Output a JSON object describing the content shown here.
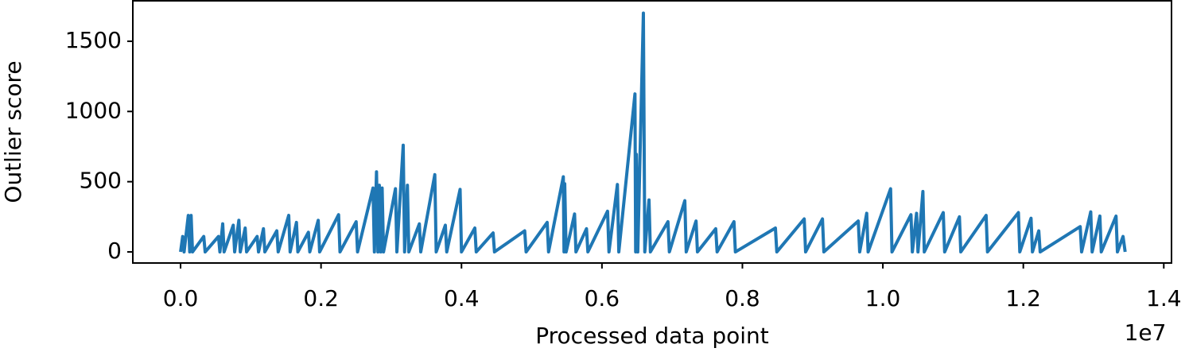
{
  "chart_data": {
    "type": "line",
    "x_label": "Processed data point",
    "y_label": "Outlier score",
    "x_offset_label": "1e7",
    "xlim": [
      -0.068,
      1.411
    ],
    "ylim": [
      -79,
      1788
    ],
    "xticks": [
      {
        "value": 0,
        "label": "0.0"
      },
      0.2,
      0.4,
      0.6,
      0.8,
      {
        "value": 1,
        "label": "1.0"
      },
      1.2,
      1.4
    ],
    "yticks": [
      0,
      500,
      1000,
      1500
    ],
    "grid": false,
    "x": [
      0,
      0.003,
      0.005,
      0.011,
      0.013,
      0.015,
      0.017,
      0.033,
      0.035,
      0.054,
      0.056,
      0.06,
      0.062,
      0.075,
      0.077,
      0.083,
      0.085,
      0.092,
      0.094,
      0.109,
      0.111,
      0.118,
      0.12,
      0.137,
      0.139,
      0.154,
      0.156,
      0.165,
      0.167,
      0.182,
      0.184,
      0.196,
      0.198,
      0.225,
      0.227,
      0.25,
      0.252,
      0.274,
      0.276,
      0.279,
      0.281,
      0.283,
      0.285,
      0.287,
      0.289,
      0.306,
      0.308,
      0.317,
      0.319,
      0.323,
      0.325,
      0.34,
      0.342,
      0.362,
      0.364,
      0.377,
      0.379,
      0.398,
      0.4,
      0.419,
      0.421,
      0.445,
      0.447,
      0.49,
      0.492,
      0.522,
      0.524,
      0.545,
      0.546,
      0.547,
      0.549,
      0.561,
      0.563,
      0.578,
      0.58,
      0.608,
      0.61,
      0.622,
      0.624,
      0.647,
      0.648,
      0.649,
      0.651,
      0.659,
      0.661,
      0.667,
      0.669,
      0.694,
      0.696,
      0.718,
      0.72,
      0.734,
      0.736,
      0.762,
      0.764,
      0.788,
      0.79,
      0.847,
      0.849,
      0.888,
      0.89,
      0.914,
      0.916,
      0.965,
      0.967,
      0.977,
      0.979,
      1.011,
      1.013,
      1.04,
      1.042,
      1.048,
      1.05,
      1.057,
      1.059,
      1.086,
      1.088,
      1.109,
      1.111,
      1.147,
      1.149,
      1.193,
      1.195,
      1.211,
      1.213,
      1.222,
      1.224,
      1.281,
      1.283,
      1.296,
      1.298,
      1.309,
      1.311,
      1.332,
      1.334,
      1.342,
      1.345
    ],
    "series": [
      {
        "color": "#1f77b4",
        "values": [
          0,
          110,
          0,
          260,
          0,
          260,
          0,
          110,
          0,
          110,
          0,
          200,
          0,
          190,
          0,
          225,
          0,
          170,
          0,
          110,
          0,
          165,
          0,
          150,
          0,
          260,
          0,
          210,
          0,
          140,
          0,
          225,
          0,
          265,
          0,
          215,
          0,
          455,
          0,
          570,
          0,
          475,
          0,
          455,
          0,
          450,
          0,
          760,
          0,
          475,
          0,
          200,
          0,
          550,
          0,
          190,
          0,
          445,
          0,
          170,
          0,
          135,
          0,
          150,
          0,
          210,
          0,
          535,
          0,
          485,
          0,
          270,
          0,
          165,
          0,
          290,
          0,
          480,
          0,
          1125,
          0,
          695,
          0,
          1700,
          0,
          370,
          0,
          215,
          0,
          365,
          0,
          220,
          0,
          165,
          0,
          215,
          0,
          170,
          0,
          235,
          0,
          235,
          0,
          220,
          0,
          275,
          0,
          450,
          0,
          265,
          0,
          275,
          0,
          430,
          0,
          280,
          0,
          250,
          0,
          260,
          0,
          280,
          0,
          240,
          0,
          150,
          0,
          180,
          0,
          285,
          0,
          255,
          0,
          255,
          0,
          110,
          0
        ]
      }
    ]
  }
}
